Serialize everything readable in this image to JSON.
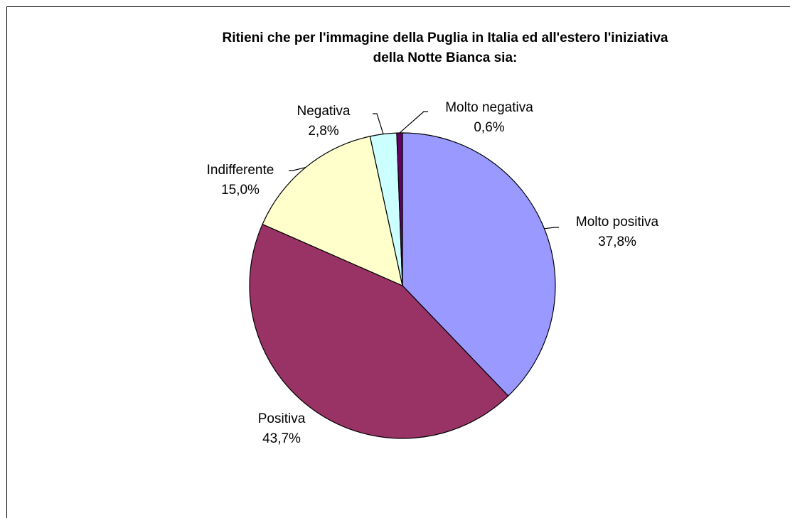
{
  "chart_data": {
    "type": "pie",
    "title": [
      "Ritieni che per l'immagine della Puglia in Italia ed all'estero l'iniziativa",
      "della Notte Bianca sia:"
    ],
    "categories": [
      "Molto positiva",
      "Positiva",
      "Indifferente",
      "Negativa",
      "Molto negativa"
    ],
    "values": [
      37.8,
      43.7,
      15.0,
      2.8,
      0.6
    ],
    "value_labels": [
      "37,8%",
      "43,7%",
      "15,0%",
      "2,8%",
      "0,6%"
    ],
    "colors": [
      "#9999FF",
      "#993366",
      "#FFFFCC",
      "#CCFFFF",
      "#660066"
    ]
  }
}
